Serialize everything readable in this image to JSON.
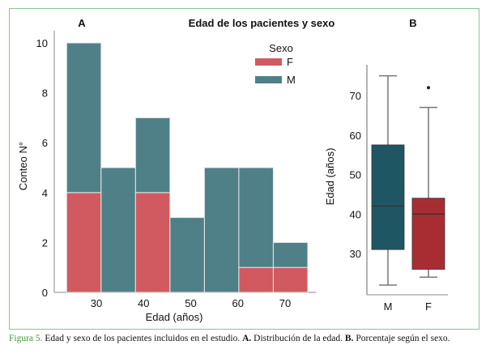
{
  "title": "Edad de los pacientes y sexo",
  "colors": {
    "F": "#d05a60",
    "M": "#4f8088",
    "box_M": "#1e5664",
    "box_F": "#a82d33",
    "frame": "#8cc48a",
    "caption_label": "#3a9a3e"
  },
  "chart_data": [
    {
      "panel": "A",
      "type": "bar",
      "stacked": true,
      "xlabel": "Edad (años)",
      "ylabel": "Conteo N°",
      "ylim": [
        0,
        10
      ],
      "yticks": [
        "0",
        "2",
        "4",
        "6",
        "8",
        "10"
      ],
      "xticks": [
        "30",
        "40",
        "50",
        "60",
        "70"
      ],
      "xtick_values": [
        30,
        40,
        50,
        60,
        70
      ],
      "bin_start": 23.7,
      "bin_width": 7.3,
      "legend": {
        "title": "Sexo",
        "entries": [
          "F",
          "M"
        ],
        "placement": "top-right"
      },
      "series": [
        {
          "name": "F",
          "values": [
            4,
            0,
            4,
            0,
            0,
            1,
            1
          ]
        },
        {
          "name": "M",
          "values": [
            6,
            5,
            3,
            3,
            5,
            4,
            1
          ]
        }
      ]
    },
    {
      "panel": "B",
      "type": "box",
      "ylabel": "Edad (años)",
      "yticks": [
        "30",
        "40",
        "50",
        "60",
        "70"
      ],
      "ytick_values": [
        30,
        40,
        50,
        60,
        70
      ],
      "ylim": [
        20,
        77
      ],
      "categories": [
        "M",
        "F"
      ],
      "boxes": [
        {
          "name": "M",
          "min": 22,
          "q1": 31,
          "median": 42,
          "q3": 57.5,
          "max": 75,
          "outliers": []
        },
        {
          "name": "F",
          "min": 24,
          "q1": 26,
          "median": 40,
          "q3": 44,
          "max": 67,
          "outliers": [
            72
          ]
        }
      ]
    }
  ],
  "caption": {
    "label": "Figura 5.",
    "text1": " Edad y sexo de los pacientes incluidos en el estudio. ",
    "a_label": "A.",
    "text2": " Distribución de la edad. ",
    "b_label": "B.",
    "text3": " Porcentaje según el sexo."
  }
}
